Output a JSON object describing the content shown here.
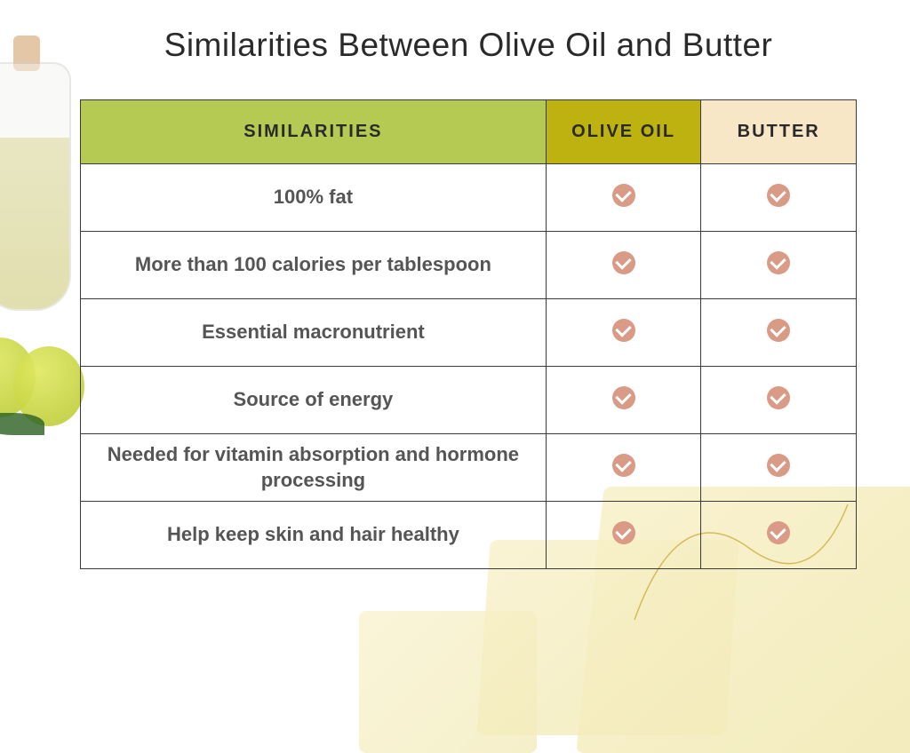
{
  "title": "Similarities Between Olive Oil and Butter",
  "table": {
    "headers": {
      "similarities": "SIMILARITIES",
      "olive_oil": "OLIVE OIL",
      "butter": "BUTTER"
    },
    "header_colors": {
      "similarities": "#b5ca52",
      "olive_oil": "#bdb210",
      "butter": "#f7e7c6"
    },
    "rows": [
      {
        "label": "100% fat",
        "olive_oil": true,
        "butter": true
      },
      {
        "label": "More than 100 calories per tablespoon",
        "olive_oil": true,
        "butter": true
      },
      {
        "label": "Essential macronutrient",
        "olive_oil": true,
        "butter": true
      },
      {
        "label": "Source of energy",
        "olive_oil": true,
        "butter": true
      },
      {
        "label": "Needed for vitamin absorption and hormone processing",
        "olive_oil": true,
        "butter": true
      },
      {
        "label": "Help keep skin and hair healthy",
        "olive_oil": true,
        "butter": true
      }
    ],
    "check_color": "#d99a86",
    "border_color": "#3a3a3a",
    "label_text_color": "#555555",
    "header_text_color": "#2a2a2a",
    "header_fontsize": 20,
    "label_fontsize": 22
  },
  "styling": {
    "title_color": "#2a2a2a",
    "title_fontsize": 37,
    "background_color": "#ffffff",
    "olive_color": "#c4d040",
    "butter_block_color": "#f4ecbe",
    "curve_stroke": "#c9a52b"
  }
}
